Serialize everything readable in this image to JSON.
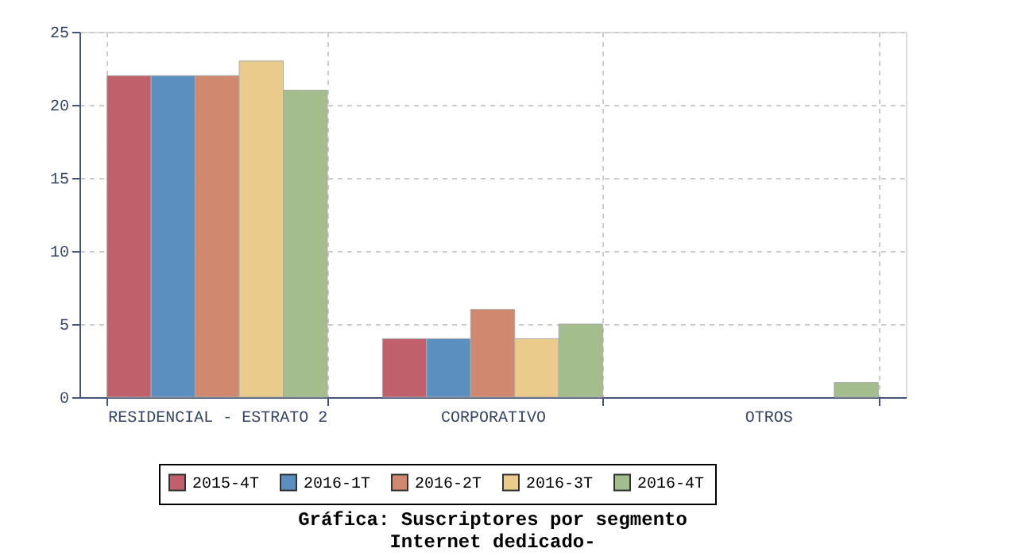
{
  "chart_data": {
    "type": "bar",
    "title": "Gráfica: Suscriptores por segmento",
    "subtitle": "Internet dedicado-",
    "categories": [
      "RESIDENCIAL - ESTRATO 2",
      "CORPORATIVO",
      "OTROS"
    ],
    "series": [
      {
        "name": "2015-4T",
        "color": "#c0606a",
        "values": [
          22,
          4,
          0
        ]
      },
      {
        "name": "2016-1T",
        "color": "#5b8fbf",
        "values": [
          22,
          4,
          0
        ]
      },
      {
        "name": "2016-2T",
        "color": "#d0896e",
        "values": [
          22,
          6,
          0
        ]
      },
      {
        "name": "2016-3T",
        "color": "#ebcb8b",
        "values": [
          23,
          4,
          0
        ]
      },
      {
        "name": "2016-4T",
        "color": "#a3bd8c",
        "values": [
          21,
          5,
          1
        ]
      }
    ],
    "ylim": [
      0,
      25
    ],
    "yticks": [
      0,
      5,
      10,
      15,
      20,
      25
    ],
    "grid": true,
    "legend": "bottom"
  }
}
